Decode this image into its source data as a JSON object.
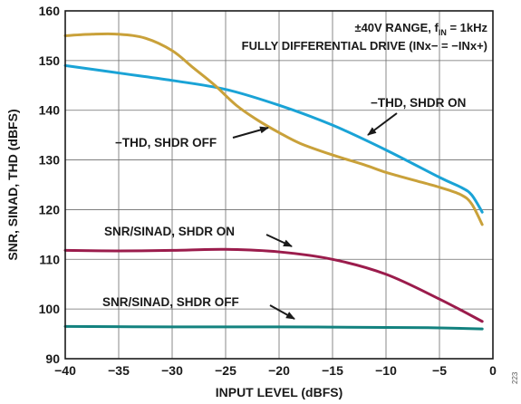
{
  "chart_data": {
    "type": "line",
    "title": "",
    "xlabel": "INPUT LEVEL (dBFS)",
    "ylabel": "SNR, SINAD, THD (dBFS)",
    "xlim": [
      -40,
      0
    ],
    "ylim": [
      90,
      160
    ],
    "grid": true,
    "x_ticks": [
      "−40",
      "−35",
      "−30",
      "−25",
      "−20",
      "−15",
      "−10",
      "−5",
      "0"
    ],
    "y_ticks": [
      "90",
      "100",
      "110",
      "120",
      "130",
      "140",
      "150",
      "160"
    ],
    "notes": {
      "line1": "±40V RANGE, f",
      "line1_sub": "IN",
      "line1_end": " = 1kHz",
      "line2": "FULLY DIFFERENTIAL DRIVE (INx− = −INx+)"
    },
    "figure_number": "223",
    "colors": {
      "thd_shdr_on": "#1aa3d6",
      "thd_shdr_off": "#c9a13a",
      "snr_shdr_on": "#9b1c4c",
      "snr_shdr_off": "#13827f"
    },
    "series": [
      {
        "name": "−THD, SHDR ON",
        "x": [
          -40,
          -35,
          -30,
          -25,
          -20,
          -15,
          -10,
          -5,
          -3,
          -2,
          -1
        ],
        "y": [
          149,
          147.5,
          146,
          144.2,
          141,
          137,
          132,
          126.5,
          124.5,
          123,
          119.5
        ]
      },
      {
        "name": "−THD, SHDR OFF",
        "x": [
          -40,
          -37.5,
          -35,
          -32.5,
          -30,
          -28,
          -26,
          -24,
          -22,
          -20,
          -18,
          -15,
          -12,
          -10,
          -7.5,
          -5,
          -3,
          -2,
          -1
        ],
        "y": [
          155,
          155.3,
          155.3,
          154.5,
          152,
          148.5,
          145,
          141,
          138,
          135.5,
          133.3,
          131,
          129,
          127.5,
          126,
          124.5,
          123,
          121.2,
          117
        ]
      },
      {
        "name": "SNR/SINAD, SHDR ON",
        "x": [
          -40,
          -35,
          -30,
          -25,
          -20,
          -15,
          -10,
          -5,
          -1
        ],
        "y": [
          111.8,
          111.7,
          111.8,
          112,
          111.5,
          110,
          107,
          102,
          97.5
        ]
      },
      {
        "name": "SNR/SINAD, SHDR OFF",
        "x": [
          -40,
          -30,
          -20,
          -10,
          -5,
          -1
        ],
        "y": [
          96.5,
          96.4,
          96.4,
          96.3,
          96.2,
          96
        ]
      }
    ],
    "annotations": [
      "−THD, SHDR ON",
      "−THD, SHDR OFF",
      "SNR/SINAD, SHDR ON",
      "SNR/SINAD, SHDR OFF"
    ]
  }
}
